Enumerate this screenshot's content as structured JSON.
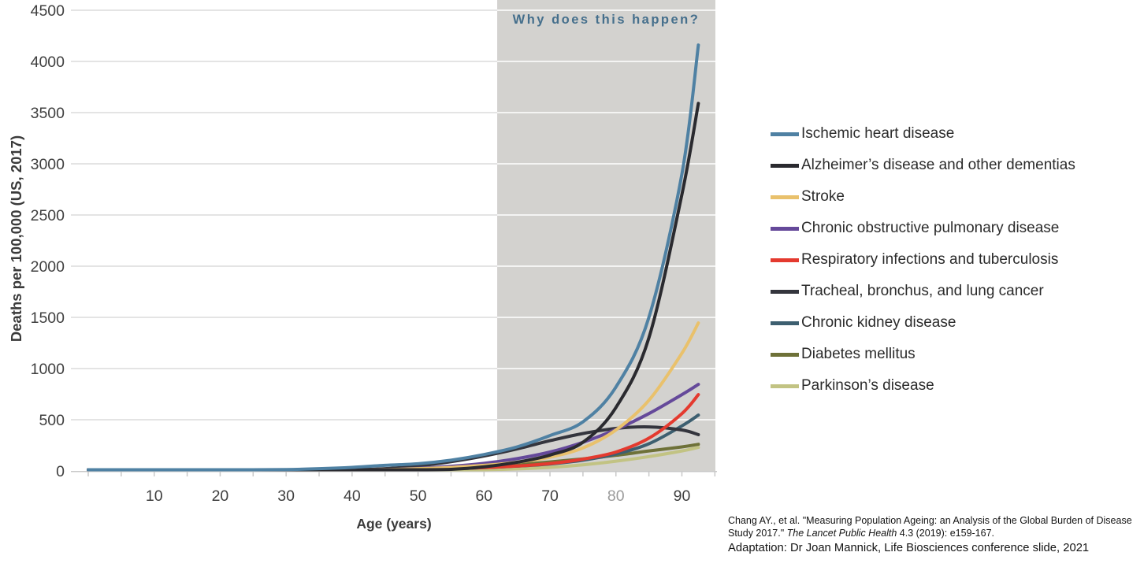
{
  "chart_data": {
    "type": "line",
    "title": "",
    "xlabel": "Age (years)",
    "ylabel": "Deaths per 100,000 (US, 2017)",
    "xlim": [
      0,
      95
    ],
    "ylim": [
      0,
      4500
    ],
    "grid": true,
    "legend_position": "right",
    "y_ticks": [
      0,
      500,
      1000,
      1500,
      2000,
      2500,
      3000,
      3500,
      4000,
      4500
    ],
    "x_ticks": [
      10,
      20,
      30,
      40,
      50,
      60,
      70,
      80,
      90
    ],
    "x_minor_tick_step": 5,
    "muted_x_tick": 80,
    "shaded_region": {
      "x_start": 62,
      "x_end": 95,
      "color": "#d3d2cf",
      "label": "Why does this happen?",
      "label_color": "#456f8c"
    },
    "x": [
      0,
      5,
      10,
      15,
      20,
      25,
      30,
      35,
      40,
      45,
      50,
      55,
      60,
      65,
      70,
      75,
      80,
      85,
      90,
      92.5
    ],
    "series": [
      {
        "name": "Ischemic heart disease",
        "color": "#4f81a3",
        "values": [
          2,
          1,
          1,
          2,
          5,
          8,
          14,
          22,
          35,
          55,
          70,
          105,
          160,
          235,
          345,
          480,
          820,
          1500,
          2900,
          4160
        ]
      },
      {
        "name": "Alzheimer’s disease and other dementias",
        "color": "#2a2a2f",
        "values": [
          0,
          0,
          0,
          0,
          0,
          0,
          0,
          0,
          1,
          2,
          5,
          15,
          40,
          85,
          155,
          280,
          620,
          1300,
          2700,
          3590
        ]
      },
      {
        "name": "Stroke",
        "color": "#e9c16c",
        "values": [
          1,
          0,
          0,
          1,
          1,
          2,
          3,
          5,
          8,
          13,
          22,
          35,
          55,
          85,
          135,
          225,
          400,
          690,
          1150,
          1445
        ]
      },
      {
        "name": "Chronic obstructive pulmonary disease",
        "color": "#65499a",
        "values": [
          0,
          0,
          0,
          0,
          0,
          1,
          1,
          2,
          5,
          12,
          25,
          45,
          75,
          120,
          185,
          280,
          405,
          560,
          745,
          845
        ]
      },
      {
        "name": "Respiratory infections and tuberculosis",
        "color": "#e43a2f",
        "values": [
          10,
          1,
          1,
          1,
          2,
          2,
          3,
          4,
          6,
          9,
          14,
          22,
          32,
          48,
          72,
          115,
          185,
          320,
          560,
          745
        ]
      },
      {
        "name": "Tracheal, bronchus, and lung cancer",
        "color": "#34353d",
        "values": [
          0,
          0,
          0,
          0,
          0,
          1,
          2,
          4,
          10,
          22,
          48,
          90,
          145,
          215,
          295,
          365,
          415,
          430,
          400,
          355
        ]
      },
      {
        "name": "Chronic kidney disease",
        "color": "#3d5f70",
        "values": [
          1,
          0,
          0,
          1,
          1,
          2,
          3,
          4,
          6,
          9,
          14,
          21,
          32,
          47,
          68,
          105,
          165,
          265,
          440,
          545
        ]
      },
      {
        "name": "Diabetes mellitus",
        "color": "#6e7138",
        "values": [
          0,
          0,
          0,
          1,
          1,
          2,
          3,
          5,
          8,
          13,
          20,
          28,
          42,
          62,
          88,
          118,
          152,
          195,
          235,
          260
        ]
      },
      {
        "name": "Parkinson’s disease",
        "color": "#c2c383",
        "values": [
          0,
          0,
          0,
          0,
          0,
          0,
          0,
          0,
          1,
          1,
          2,
          5,
          10,
          20,
          35,
          60,
          95,
          140,
          195,
          230
        ]
      }
    ]
  },
  "citation": {
    "pre": "Chang AY., et al. \"Measuring Population Ageing: an Analysis of the Global Burden of Disease Study 2017.\" ",
    "italic": "The Lancet Public Health",
    "post": " 4.3 (2019): e159-167.",
    "adaptation": "Adaptation: Dr Joan Mannick, Life Biosciences conference slide, 2021"
  }
}
